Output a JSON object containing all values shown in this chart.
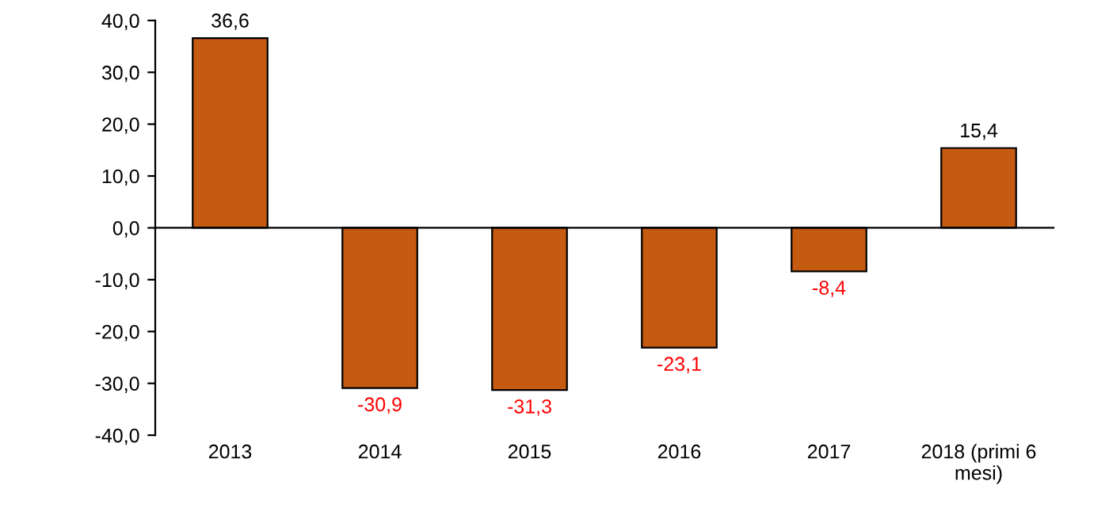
{
  "chart_data": {
    "type": "bar",
    "categories": [
      "2013",
      "2014",
      "2015",
      "2016",
      "2017",
      "2018 (primi 6 mesi)"
    ],
    "values": [
      36.6,
      -30.9,
      -31.3,
      -23.1,
      -8.4,
      15.4
    ],
    "value_labels": [
      "36,6",
      "-30,9",
      "-31,3",
      "-23,1",
      "-8,4",
      "15,4"
    ],
    "colors": [
      "#c55a11",
      "#c55a11",
      "#c55a11",
      "#c55a11",
      "#c55a11",
      "#c55a11"
    ],
    "ylim": [
      -40,
      40
    ],
    "yticks": [
      {
        "value": -40,
        "label": "-40,0"
      },
      {
        "value": -30,
        "label": "-30,0"
      },
      {
        "value": -20,
        "label": "-20,0"
      },
      {
        "value": -10,
        "label": "-10,0"
      },
      {
        "value": 0,
        "label": "0,0"
      },
      {
        "value": 10,
        "label": "10,0"
      },
      {
        "value": 20,
        "label": "20,0"
      },
      {
        "value": 30,
        "label": "30,0"
      },
      {
        "value": 40,
        "label": "40,0"
      }
    ],
    "legend": false
  }
}
